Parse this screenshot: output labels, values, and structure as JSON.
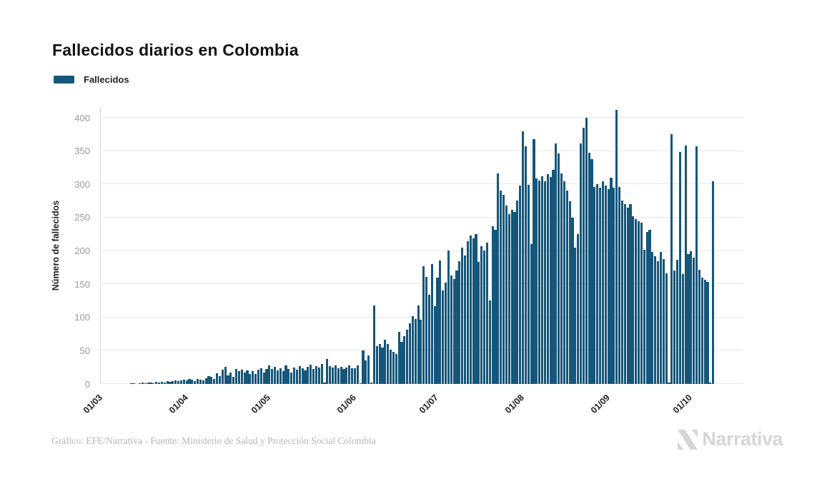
{
  "title": "Fallecidos diarios en Colombia",
  "legend": {
    "label": "Fallecidos"
  },
  "footer": {
    "credit": "Gráfico: EFE/Narrativa - Fuente: Ministerio de Salud y Protección Social Colombia"
  },
  "branding": {
    "logo_text": "Narrativa"
  },
  "chart_data": {
    "type": "bar",
    "title": "Fallecidos diarios en Colombia",
    "xlabel": "",
    "ylabel": "Número de fallecidos",
    "series_name": "Fallecidos",
    "bar_color": "#15567A",
    "grid": true,
    "legend_position": "top-left",
    "ylim": [
      0,
      412
    ],
    "yticks": [
      0,
      50,
      100,
      150,
      200,
      250,
      300,
      350,
      400
    ],
    "xtick_labels": [
      "01/03",
      "01/04",
      "01/05",
      "01/06",
      "01/07",
      "01/08",
      "01/09",
      "01/10"
    ],
    "xtick_day_offsets": [
      0,
      31,
      61,
      92,
      122,
      153,
      184,
      214
    ],
    "x_description": "daily bars from 01/03 through 09/10, one bar per day",
    "values": [
      0,
      0,
      0,
      0,
      0,
      0,
      0,
      0,
      0,
      0,
      0,
      1,
      1,
      0,
      1,
      2,
      1,
      2,
      2,
      1,
      3,
      2,
      3,
      2,
      4,
      3,
      4,
      5,
      4,
      5,
      6,
      5,
      7,
      6,
      4,
      8,
      6,
      5,
      9,
      12,
      11,
      8,
      16,
      12,
      21,
      26,
      13,
      17,
      11,
      23,
      19,
      21,
      17,
      20,
      15,
      19,
      15,
      21,
      24,
      17,
      23,
      28,
      23,
      26,
      20,
      24,
      19,
      28,
      22,
      17,
      25,
      21,
      27,
      24,
      20,
      26,
      29,
      23,
      27,
      25,
      30,
      2,
      38,
      27,
      25,
      28,
      24,
      26,
      22,
      25,
      28,
      24,
      24,
      28,
      1,
      50,
      35,
      43,
      2,
      118,
      57,
      60,
      55,
      66,
      60,
      51,
      48,
      45,
      78,
      63,
      72,
      82,
      91,
      102,
      98,
      118,
      97,
      177,
      161,
      134,
      180,
      117,
      160,
      186,
      140,
      152,
      201,
      163,
      158,
      170,
      184,
      205,
      193,
      215,
      223,
      219,
      225,
      183,
      207,
      201,
      212,
      125,
      237,
      232,
      316,
      291,
      284,
      268,
      255,
      262,
      258,
      276,
      298,
      380,
      357,
      299,
      210,
      368,
      309,
      306,
      312,
      305,
      315,
      311,
      322,
      361,
      346,
      316,
      305,
      291,
      275,
      250,
      205,
      225,
      361,
      385,
      400,
      348,
      338,
      296,
      300,
      295,
      305,
      298,
      293,
      310,
      295,
      412,
      296,
      276,
      270,
      265,
      270,
      252,
      248,
      245,
      242,
      202,
      228,
      232,
      198,
      192,
      185,
      198,
      188,
      166,
      2,
      375,
      171,
      187,
      349,
      165,
      358,
      195,
      200,
      190,
      357,
      172,
      160,
      157,
      153,
      2,
      305
    ]
  }
}
